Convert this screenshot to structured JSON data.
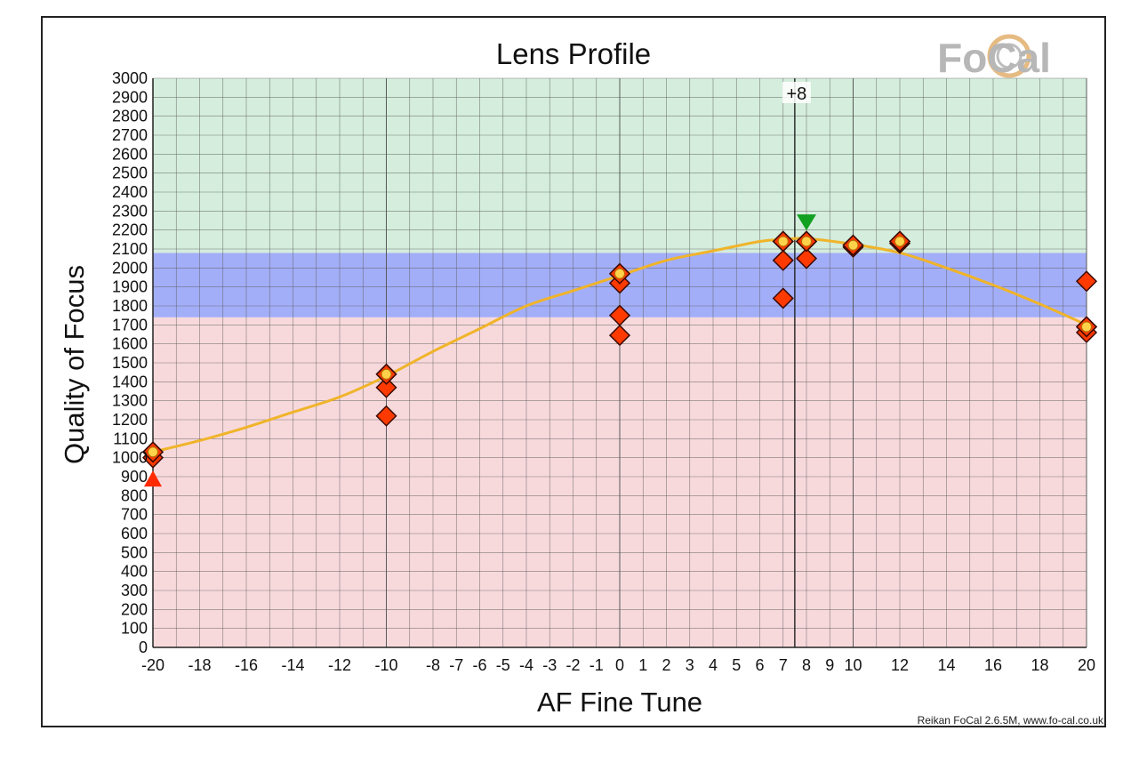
{
  "chart_data": {
    "type": "scatter",
    "title": "Lens Profile",
    "xlabel": "AF Fine Tune",
    "ylabel": "Quality of Focus",
    "credit": "Reikan FoCal 2.6.5M, www.fo-cal.co.uk",
    "logo": "FoCal",
    "xlim": [
      -20,
      20
    ],
    "ylim": [
      0,
      3000
    ],
    "x_ticks": [
      -20,
      -18,
      -16,
      -14,
      -12,
      -10,
      -8,
      -7,
      -6,
      -5,
      -4,
      -3,
      -2,
      -1,
      0,
      1,
      2,
      3,
      4,
      5,
      6,
      7,
      8,
      9,
      10,
      12,
      14,
      16,
      18,
      20
    ],
    "y_ticks": [
      0,
      100,
      200,
      300,
      400,
      500,
      600,
      700,
      800,
      900,
      1000,
      1100,
      1200,
      1300,
      1400,
      1500,
      1600,
      1700,
      1800,
      1900,
      2000,
      2100,
      2200,
      2300,
      2400,
      2500,
      2600,
      2700,
      2800,
      2900,
      3000
    ],
    "grid": true,
    "bands": [
      {
        "from": 0,
        "to": 1740,
        "color": "#f7d9dc"
      },
      {
        "from": 1740,
        "to": 2080,
        "color": "#a3aef8"
      },
      {
        "from": 2080,
        "to": 3000,
        "color": "#d4eddc"
      }
    ],
    "vertical_marker": {
      "x": 7.5,
      "label": "+8"
    },
    "measurements": [
      {
        "x": -20,
        "y": 1000
      },
      {
        "x": -20,
        "y": 1030
      },
      {
        "x": -10,
        "y": 1440
      },
      {
        "x": -10,
        "y": 1370
      },
      {
        "x": -10,
        "y": 1220
      },
      {
        "x": 0,
        "y": 1970
      },
      {
        "x": 0,
        "y": 1920
      },
      {
        "x": 0,
        "y": 1750
      },
      {
        "x": 0,
        "y": 1645
      },
      {
        "x": 7,
        "y": 2140
      },
      {
        "x": 7,
        "y": 2040
      },
      {
        "x": 7,
        "y": 1840
      },
      {
        "x": 8,
        "y": 2140
      },
      {
        "x": 8,
        "y": 2050
      },
      {
        "x": 10,
        "y": 2110
      },
      {
        "x": 10,
        "y": 2120
      },
      {
        "x": 12,
        "y": 2130
      },
      {
        "x": 12,
        "y": 2140
      },
      {
        "x": 20,
        "y": 1930
      },
      {
        "x": 20,
        "y": 1690
      },
      {
        "x": 20,
        "y": 1660
      }
    ],
    "highlighted": [
      {
        "x": -20,
        "y": 1030
      },
      {
        "x": -10,
        "y": 1440
      },
      {
        "x": 0,
        "y": 1970
      },
      {
        "x": 7,
        "y": 2140
      },
      {
        "x": 8,
        "y": 2140
      },
      {
        "x": 10,
        "y": 2120
      },
      {
        "x": 12,
        "y": 2140
      },
      {
        "x": 20,
        "y": 1690
      }
    ],
    "fit_curve": [
      {
        "x": -20,
        "y": 1030
      },
      {
        "x": -18,
        "y": 1090
      },
      {
        "x": -16,
        "y": 1160
      },
      {
        "x": -14,
        "y": 1240
      },
      {
        "x": -12,
        "y": 1320
      },
      {
        "x": -10,
        "y": 1430
      },
      {
        "x": -8,
        "y": 1560
      },
      {
        "x": -6,
        "y": 1680
      },
      {
        "x": -4,
        "y": 1800
      },
      {
        "x": -2,
        "y": 1880
      },
      {
        "x": 0,
        "y": 1960
      },
      {
        "x": 2,
        "y": 2040
      },
      {
        "x": 4,
        "y": 2090
      },
      {
        "x": 6,
        "y": 2140
      },
      {
        "x": 7,
        "y": 2150
      },
      {
        "x": 8,
        "y": 2155
      },
      {
        "x": 10,
        "y": 2125
      },
      {
        "x": 12,
        "y": 2080
      },
      {
        "x": 14,
        "y": 2000
      },
      {
        "x": 16,
        "y": 1910
      },
      {
        "x": 18,
        "y": 1810
      },
      {
        "x": 20,
        "y": 1700
      }
    ],
    "peak_marker": {
      "x": 8,
      "y": 2240,
      "color": "#12a020"
    },
    "low_marker": {
      "x": -20,
      "y": 890,
      "color": "#ff2a00"
    },
    "colors": {
      "point_fill": "#ff3a00",
      "point_stroke": "#3a0a00",
      "highlight_fill": "#ffd24a",
      "curve": "#f0b429",
      "grid": "#5a5a5a"
    }
  }
}
